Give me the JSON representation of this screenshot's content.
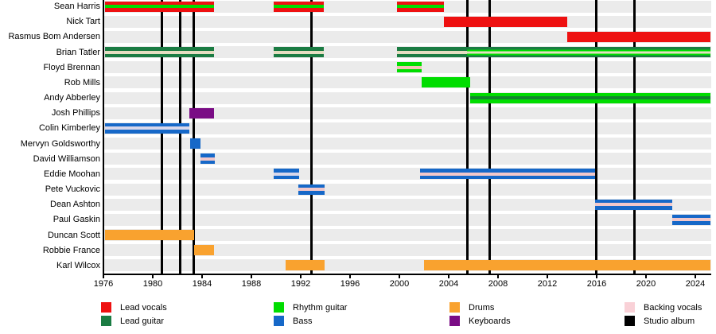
{
  "colors": {
    "lead_vocals": "#ee1111",
    "lead_guitar": "#1b7c43",
    "rhythm_guitar": "#00dd00",
    "bass": "#1668c8",
    "drums": "#f9a22f",
    "keyboards": "#7a0c85",
    "backing_vocals": "#f9d1d7",
    "studio_album": "#000000",
    "row_band": "#ebebeb",
    "backing_stripe_wheat": "#e5dec1",
    "backing_stripe_lavender": "#d8d7ea",
    "backing_stripe_pink": "#f2c8ca",
    "backing_stripe_warm": "#f2c4b4",
    "lead_guitar_stripe": "#12852d"
  },
  "chart_data": {
    "type": "bar",
    "variant": "band-members-timeline-gantt",
    "title": "",
    "xlabel": "",
    "ylabel": "",
    "x_axis": {
      "start": 1976,
      "end": 2025.2,
      "ticks": [
        1976,
        1980,
        1984,
        1988,
        1992,
        1996,
        2000,
        2004,
        2008,
        2012,
        2016,
        2020,
        2024
      ]
    },
    "albums": {
      "label": "Studio album",
      "years": [
        1980.75,
        1982.2,
        1983.35,
        1992.9,
        2005.5,
        2007.3,
        2015.95,
        2019.05
      ]
    },
    "members": [
      {
        "name": "Sean Harris",
        "roles": [
          "Lead vocals",
          "Rhythm guitar"
        ],
        "segments": [
          {
            "from": 1976.1,
            "to": 1985.0,
            "layers": [
              "lead_vocals",
              "rhythm_guitar"
            ]
          },
          {
            "from": 1989.8,
            "to": 1993.9,
            "layers": [
              "lead_vocals",
              "rhythm_guitar"
            ]
          },
          {
            "from": 1999.8,
            "to": 2003.6,
            "layers": [
              "lead_vocals",
              "rhythm_guitar"
            ]
          }
        ]
      },
      {
        "name": "Nick Tart",
        "roles": [
          "Lead vocals"
        ],
        "segments": [
          {
            "from": 2003.6,
            "to": 2013.6,
            "layers": [
              "lead_vocals"
            ]
          }
        ]
      },
      {
        "name": "Rasmus Bom Andersen",
        "roles": [
          "Lead vocals"
        ],
        "segments": [
          {
            "from": 2013.6,
            "to": 2025.2,
            "layers": [
              "lead_vocals"
            ]
          }
        ]
      },
      {
        "name": "Brian Tatler",
        "roles": [
          "Lead guitar",
          "Rhythm guitar",
          "Backing vocals"
        ],
        "segments": [
          {
            "from": 1976.1,
            "to": 1985.0,
            "layers": [
              "lead_guitar",
              "backing_stripe_wheat"
            ]
          },
          {
            "from": 1989.8,
            "to": 1993.9,
            "layers": [
              "lead_guitar",
              "backing_stripe_wheat"
            ]
          },
          {
            "from": 1999.8,
            "to": 2005.5,
            "layers": [
              "lead_guitar",
              "backing_stripe_wheat"
            ]
          },
          {
            "from": 2005.5,
            "to": 2025.2,
            "layers": [
              "lead_guitar",
              "rhythm_guitar",
              "backing_stripe_wheat"
            ]
          }
        ]
      },
      {
        "name": "Floyd Brennan",
        "roles": [
          "Rhythm guitar",
          "Backing vocals"
        ],
        "segments": [
          {
            "from": 1999.8,
            "to": 2001.8,
            "layers": [
              "rhythm_guitar",
              "backing_stripe_warm"
            ]
          }
        ]
      },
      {
        "name": "Rob Mills",
        "roles": [
          "Rhythm guitar"
        ],
        "segments": [
          {
            "from": 2001.8,
            "to": 2005.75,
            "layers": [
              "rhythm_guitar"
            ]
          }
        ]
      },
      {
        "name": "Andy Abberley",
        "roles": [
          "Rhythm guitar",
          "Lead guitar"
        ],
        "segments": [
          {
            "from": 2005.75,
            "to": 2025.2,
            "layers": [
              "rhythm_guitar",
              "lead_guitar_stripe"
            ]
          }
        ]
      },
      {
        "name": "Josh Phillips",
        "roles": [
          "Keyboards"
        ],
        "segments": [
          {
            "from": 1982.95,
            "to": 1985.0,
            "layers": [
              "keyboards"
            ]
          }
        ]
      },
      {
        "name": "Colin Kimberley",
        "roles": [
          "Bass",
          "Backing vocals"
        ],
        "segments": [
          {
            "from": 1976.1,
            "to": 1983.0,
            "layers": [
              "bass",
              "backing_stripe_lavender"
            ]
          }
        ]
      },
      {
        "name": "Mervyn Goldsworthy",
        "roles": [
          "Bass"
        ],
        "segments": [
          {
            "from": 1983.0,
            "to": 1983.9,
            "layers": [
              "bass"
            ]
          }
        ]
      },
      {
        "name": "David Williamson",
        "roles": [
          "Bass",
          "Backing vocals"
        ],
        "segments": [
          {
            "from": 1983.9,
            "to": 1985.05,
            "layers": [
              "bass",
              "backing_stripe_pink"
            ]
          }
        ]
      },
      {
        "name": "Eddie Moohan",
        "roles": [
          "Bass",
          "Backing vocals"
        ],
        "segments": [
          {
            "from": 1989.8,
            "to": 1991.9,
            "layers": [
              "bass",
              "backing_stripe_lavender"
            ]
          },
          {
            "from": 2001.7,
            "to": 2015.9,
            "layers": [
              "bass",
              "backing_stripe_pink"
            ]
          }
        ]
      },
      {
        "name": "Pete Vuckovic",
        "roles": [
          "Bass",
          "Backing vocals"
        ],
        "segments": [
          {
            "from": 1991.8,
            "to": 1993.95,
            "layers": [
              "bass",
              "backing_stripe_pink"
            ]
          }
        ]
      },
      {
        "name": "Dean Ashton",
        "roles": [
          "Bass",
          "Backing vocals"
        ],
        "segments": [
          {
            "from": 2015.9,
            "to": 2022.1,
            "layers": [
              "bass",
              "backing_stripe_pink"
            ]
          }
        ]
      },
      {
        "name": "Paul Gaskin",
        "roles": [
          "Bass",
          "Backing vocals"
        ],
        "segments": [
          {
            "from": 2022.1,
            "to": 2025.2,
            "layers": [
              "bass",
              "backing_stripe_pink"
            ]
          }
        ]
      },
      {
        "name": "Duncan Scott",
        "roles": [
          "Drums"
        ],
        "segments": [
          {
            "from": 1976.1,
            "to": 1983.35,
            "layers": [
              "drums"
            ]
          }
        ]
      },
      {
        "name": "Robbie France",
        "roles": [
          "Drums"
        ],
        "segments": [
          {
            "from": 1983.35,
            "to": 1985.0,
            "layers": [
              "drums"
            ]
          }
        ]
      },
      {
        "name": "Karl Wilcox",
        "roles": [
          "Drums"
        ],
        "segments": [
          {
            "from": 1990.8,
            "to": 1993.95,
            "layers": [
              "drums"
            ]
          },
          {
            "from": 2002.0,
            "to": 2025.2,
            "layers": [
              "drums"
            ]
          }
        ]
      }
    ]
  },
  "legend": {
    "columns": [
      [
        {
          "label": "Lead vocals",
          "color": "lead_vocals"
        },
        {
          "label": "Lead guitar",
          "color": "lead_guitar"
        }
      ],
      [
        {
          "label": "Rhythm guitar",
          "color": "rhythm_guitar"
        },
        {
          "label": "Bass",
          "color": "bass"
        }
      ],
      [
        {
          "label": "Drums",
          "color": "drums"
        },
        {
          "label": "Keyboards",
          "color": "keyboards"
        }
      ],
      [
        {
          "label": "Backing vocals",
          "color": "backing_vocals"
        },
        {
          "label": "Studio album",
          "color": "studio_album"
        }
      ]
    ]
  }
}
